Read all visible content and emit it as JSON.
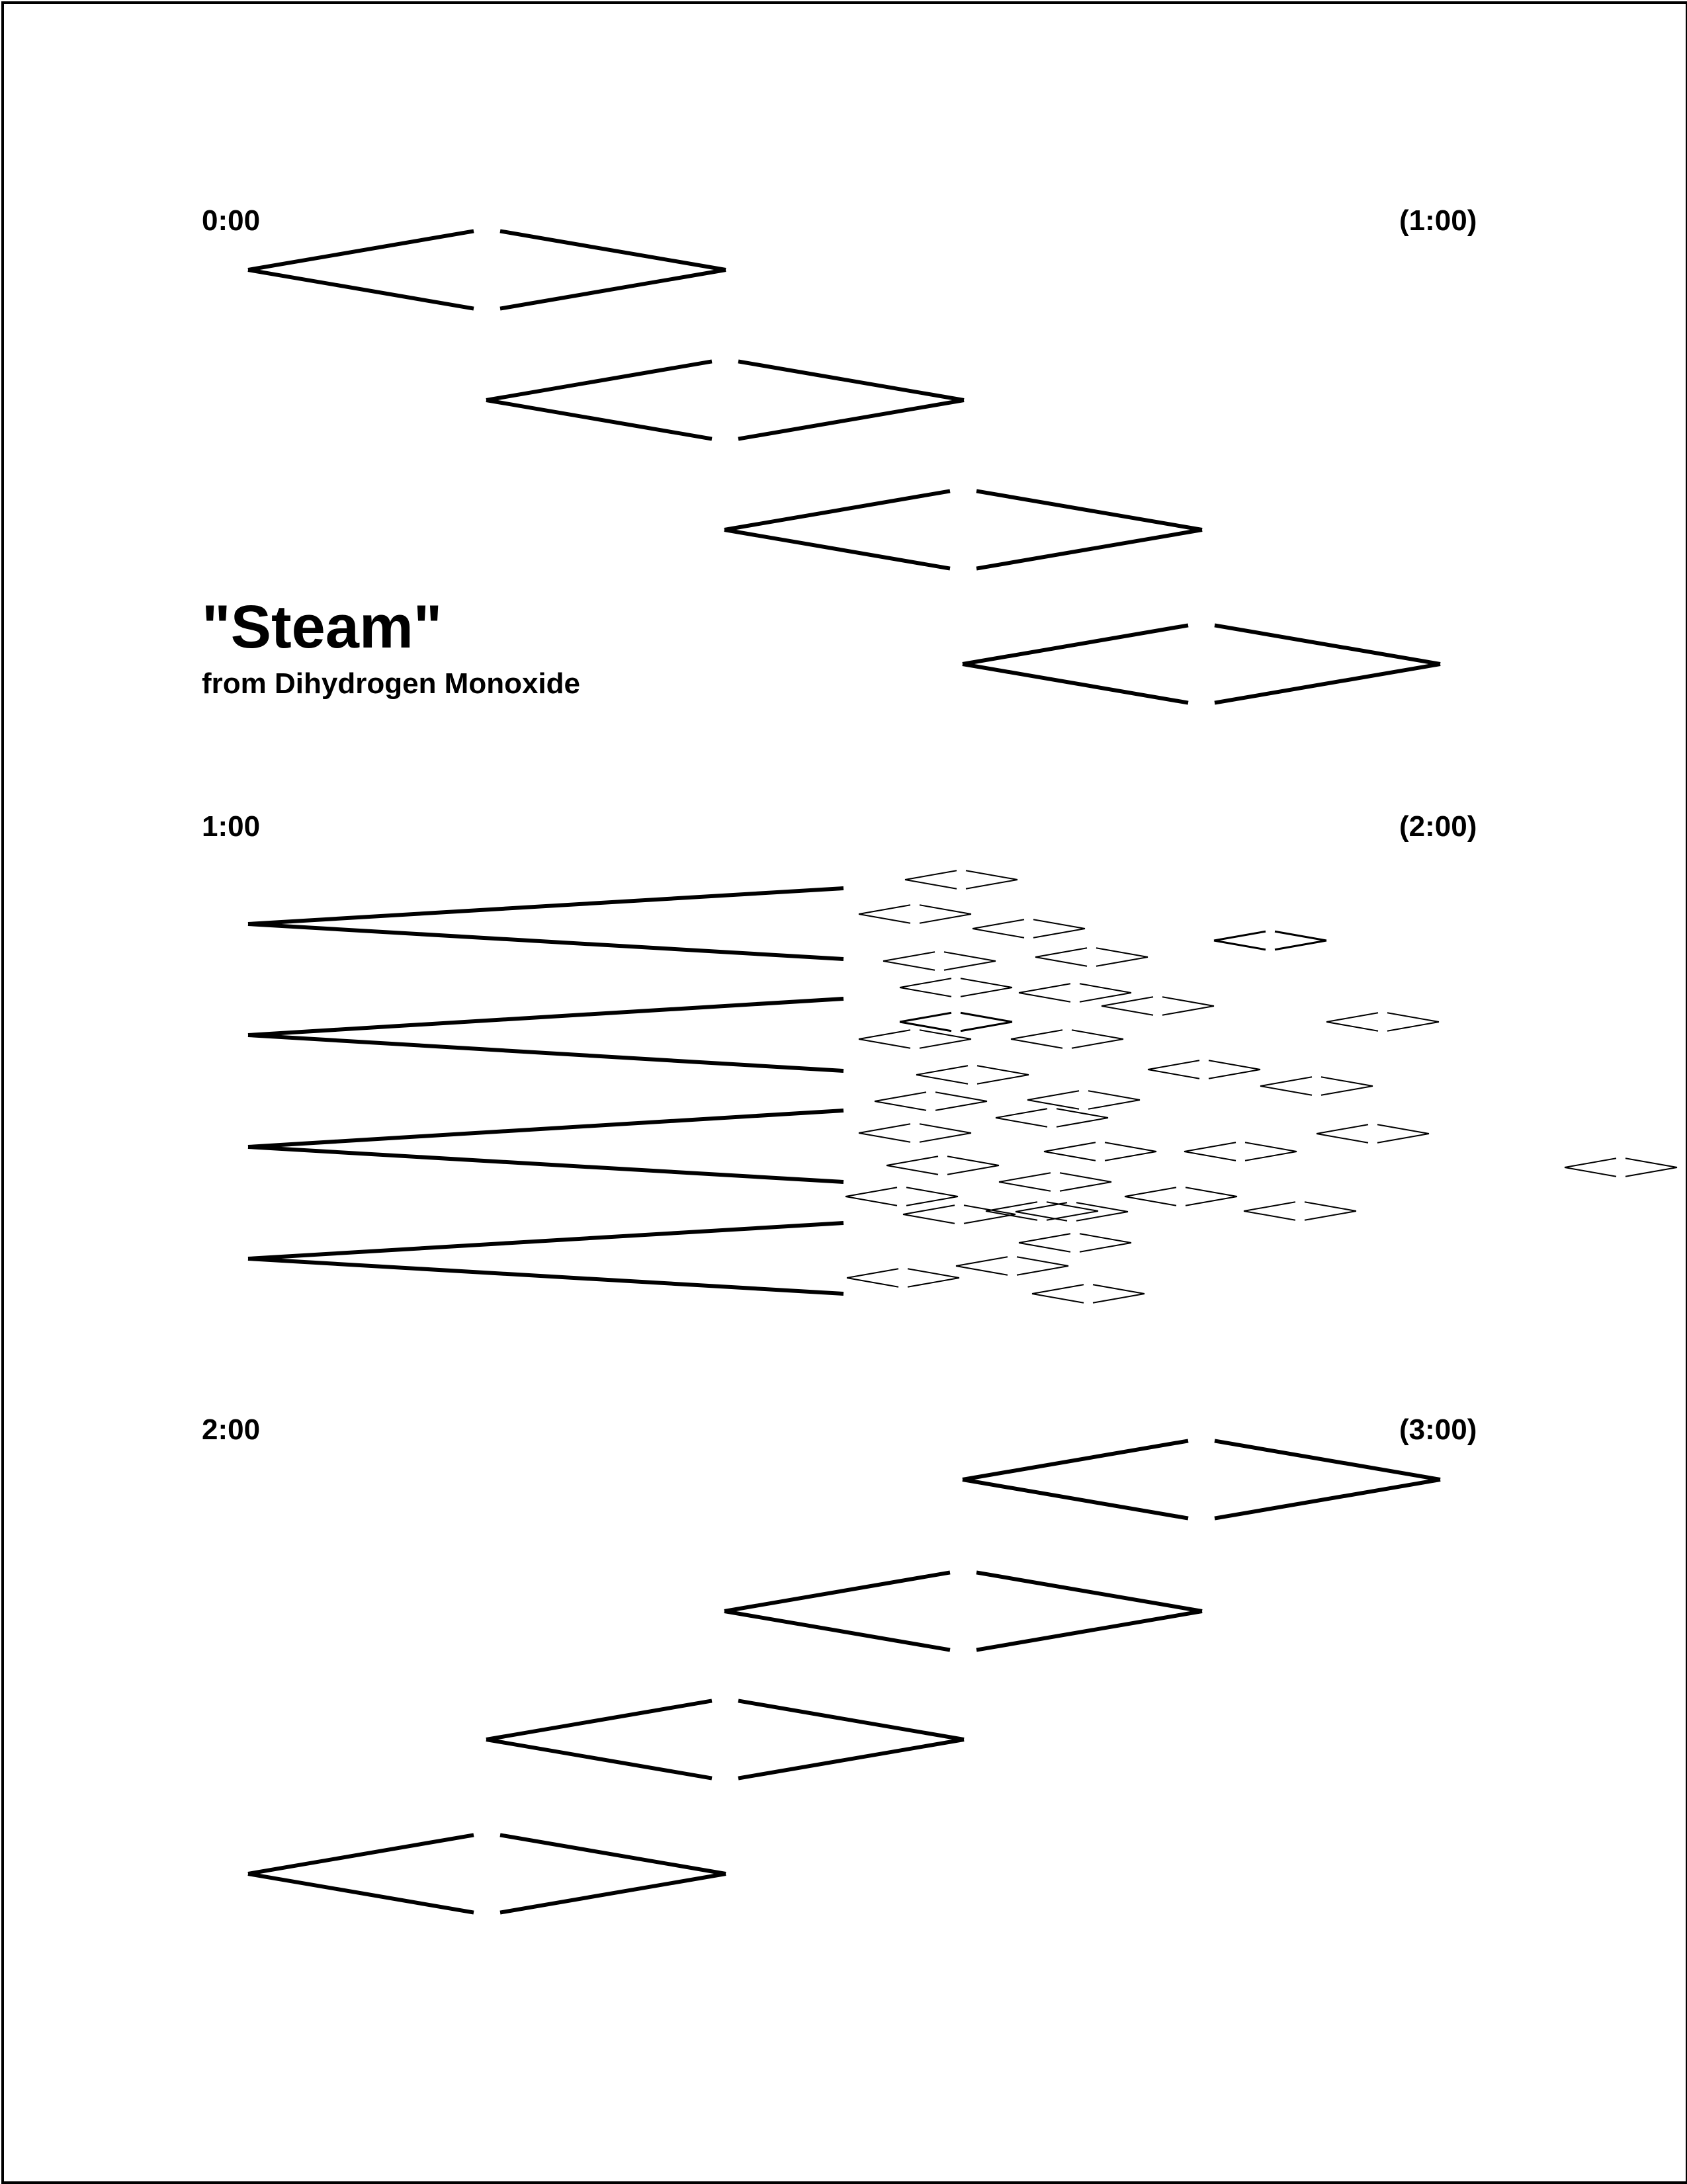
{
  "title": "\"Steam\"",
  "subtitle": "from Dihydrogen Monoxide",
  "sections": [
    {
      "start_label": "0:00",
      "end_label": "(1:00)",
      "shape": "rising-diamonds"
    },
    {
      "start_label": "1:00",
      "end_label": "(2:00)",
      "shape": "wedges-dispersing-into-small-diamonds"
    },
    {
      "start_label": "2:00",
      "end_label": "(3:00)",
      "shape": "descending-diamonds"
    }
  ],
  "colors": {
    "ink": "#000000",
    "background": "#ffffff"
  }
}
